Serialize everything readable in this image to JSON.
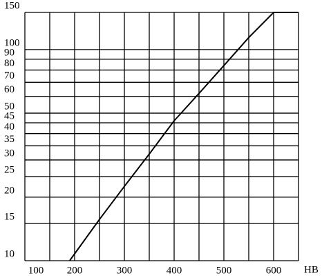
{
  "chart_data": {
    "type": "line",
    "x_label": "HB",
    "x": [
      190,
      250,
      300,
      350,
      400,
      450,
      500,
      550,
      600,
      650
    ],
    "series": [
      {
        "color": "#000000",
        "values": [
          10,
          15.7,
          22.5,
          32,
          46,
          62,
          84,
          114,
          150,
          150
        ]
      }
    ],
    "xlim": [
      100,
      650
    ],
    "xticks": [
      100,
      200,
      300,
      400,
      500,
      600
    ],
    "xgrid": [
      100,
      150,
      200,
      250,
      300,
      350,
      400,
      450,
      500,
      550,
      600,
      650
    ],
    "ylim": [
      10,
      150
    ],
    "ylog": true,
    "yticks": [
      10,
      15,
      20,
      25,
      30,
      35,
      40,
      45,
      50,
      60,
      70,
      80,
      90,
      100,
      150
    ],
    "grid": true
  }
}
